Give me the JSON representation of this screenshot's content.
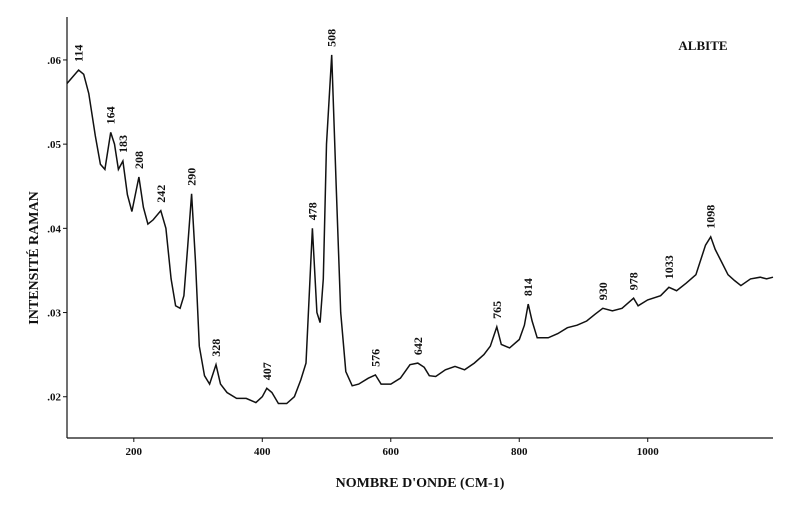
{
  "chart_data": {
    "type": "line",
    "annotation": "ALBITE",
    "x_label": "NOMBRE D'ONDE (CM-1)",
    "y_label": "INTENSITÉ RAMAN",
    "color": "#111111",
    "xlim": [
      96,
      1195
    ],
    "ylim": [
      0.0151,
      0.0651
    ],
    "xticks": [
      200,
      400,
      600,
      800,
      1000
    ],
    "yticks": [
      {
        "value": 0.02,
        "label": ".02"
      },
      {
        "value": 0.03,
        "label": ".03"
      },
      {
        "value": 0.04,
        "label": ".04"
      },
      {
        "value": 0.05,
        "label": ".05"
      },
      {
        "value": 0.06,
        "label": ".06"
      }
    ],
    "x": [
      96,
      105,
      114,
      122,
      130,
      140,
      148,
      155,
      164,
      170,
      176,
      183,
      190,
      197,
      208,
      215,
      222,
      230,
      242,
      250,
      258,
      265,
      272,
      278,
      284,
      290,
      296,
      302,
      310,
      318,
      328,
      335,
      345,
      360,
      375,
      390,
      400,
      407,
      415,
      425,
      438,
      450,
      460,
      468,
      478,
      485,
      490,
      495,
      500,
      508,
      515,
      522,
      530,
      540,
      550,
      565,
      576,
      585,
      600,
      615,
      630,
      642,
      652,
      660,
      670,
      685,
      700,
      715,
      730,
      745,
      755,
      765,
      772,
      785,
      800,
      808,
      814,
      820,
      828,
      845,
      860,
      875,
      890,
      905,
      918,
      930,
      945,
      960,
      978,
      985,
      1000,
      1020,
      1033,
      1045,
      1060,
      1075,
      1090,
      1098,
      1105,
      1115,
      1125,
      1135,
      1145,
      1160,
      1175,
      1185,
      1195
    ],
    "values": [
      0.0572,
      0.058,
      0.0588,
      0.0583,
      0.056,
      0.051,
      0.0476,
      0.047,
      0.0514,
      0.05,
      0.047,
      0.048,
      0.044,
      0.042,
      0.0461,
      0.0425,
      0.0405,
      0.041,
      0.0421,
      0.04,
      0.034,
      0.0308,
      0.0305,
      0.032,
      0.038,
      0.0441,
      0.036,
      0.026,
      0.0225,
      0.0215,
      0.0238,
      0.0215,
      0.0205,
      0.0198,
      0.0198,
      0.0193,
      0.02,
      0.021,
      0.0205,
      0.0192,
      0.0192,
      0.02,
      0.022,
      0.024,
      0.04,
      0.03,
      0.0288,
      0.034,
      0.05,
      0.0606,
      0.045,
      0.03,
      0.023,
      0.0213,
      0.0215,
      0.0222,
      0.0226,
      0.0215,
      0.0215,
      0.0222,
      0.0238,
      0.024,
      0.0235,
      0.0225,
      0.0224,
      0.0232,
      0.0236,
      0.0232,
      0.024,
      0.025,
      0.026,
      0.0283,
      0.0262,
      0.0258,
      0.0268,
      0.0285,
      0.031,
      0.029,
      0.027,
      0.027,
      0.0275,
      0.0282,
      0.0285,
      0.029,
      0.0298,
      0.0305,
      0.0302,
      0.0305,
      0.0317,
      0.0308,
      0.0315,
      0.032,
      0.033,
      0.0326,
      0.0335,
      0.0345,
      0.038,
      0.039,
      0.0375,
      0.036,
      0.0345,
      0.0338,
      0.0332,
      0.034,
      0.0342,
      0.034,
      0.0342
    ],
    "peak_labels": [
      114,
      164,
      183,
      208,
      242,
      290,
      328,
      407,
      478,
      508,
      576,
      642,
      765,
      814,
      930,
      978,
      1033,
      1098
    ]
  }
}
